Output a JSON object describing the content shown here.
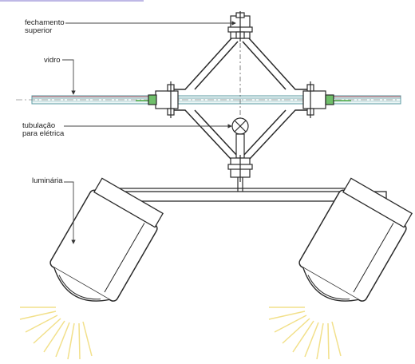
{
  "labels": {
    "fechamento_superior": "fechamento\nsuperior",
    "vidro": "vidro",
    "tubulacao": "tubulação\npara elétrica",
    "luminaria": "luminária"
  },
  "colors": {
    "line": "#2a2a2a",
    "leader": "#444444",
    "glass": "#5b9ba3",
    "glass_edge": "#c43a4a",
    "glass_highlight": "#6fbf6a",
    "fixture_body": "#ffffff",
    "light_rays": "#f2e08a",
    "accent_top": "#6f63c8"
  },
  "icons": [
    "bolt-icon",
    "pipe-junction-icon",
    "spotlight-icon"
  ]
}
